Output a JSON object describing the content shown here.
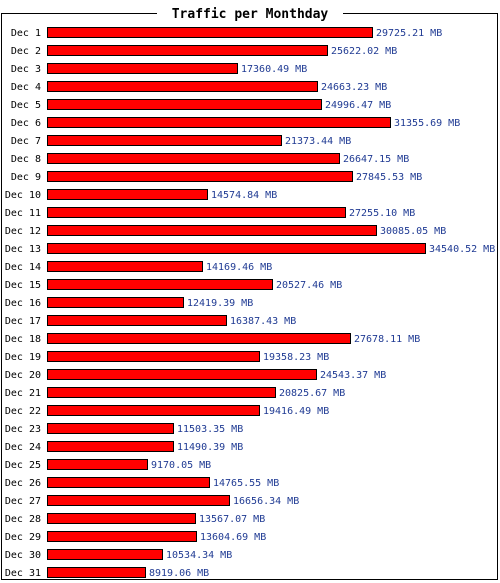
{
  "chart_data": {
    "type": "bar",
    "orientation": "horizontal",
    "title": "Traffic per Monthday",
    "unit": "MB",
    "bar_color": "#ff0000",
    "value_label_color": "#1f3a93",
    "categories": [
      "Dec 1",
      "Dec 2",
      "Dec 3",
      "Dec 4",
      "Dec 5",
      "Dec 6",
      "Dec 7",
      "Dec 8",
      "Dec 9",
      "Dec 10",
      "Dec 11",
      "Dec 12",
      "Dec 13",
      "Dec 14",
      "Dec 15",
      "Dec 16",
      "Dec 17",
      "Dec 18",
      "Dec 19",
      "Dec 20",
      "Dec 21",
      "Dec 22",
      "Dec 23",
      "Dec 24",
      "Dec 25",
      "Dec 26",
      "Dec 27",
      "Dec 28",
      "Dec 29",
      "Dec 30",
      "Dec 31"
    ],
    "values": [
      29725.21,
      25622.02,
      17360.49,
      24663.23,
      24996.47,
      31355.69,
      21373.44,
      26647.15,
      27845.53,
      14574.84,
      27255.1,
      30085.05,
      34540.52,
      14169.46,
      20527.46,
      12419.39,
      16387.43,
      27678.11,
      19358.23,
      24543.37,
      20825.67,
      19416.49,
      11503.35,
      11490.39,
      9170.05,
      14765.55,
      16656.34,
      13567.07,
      13604.69,
      10534.34,
      8919.06
    ],
    "value_labels": [
      "29725.21 MB",
      "25622.02 MB",
      "17360.49 MB",
      "24663.23 MB",
      "24996.47 MB",
      "31355.69 MB",
      "21373.44 MB",
      "26647.15 MB",
      "27845.53 MB",
      "14574.84 MB",
      "27255.10 MB",
      "30085.05 MB",
      "34540.52 MB",
      "14169.46 MB",
      "20527.46 MB",
      "12419.39 MB",
      "16387.43 MB",
      "27678.11 MB",
      "19358.23 MB",
      "24543.37 MB",
      "20825.67 MB",
      "19416.49 MB",
      "11503.35 MB",
      "11490.39 MB",
      "9170.05 MB",
      "14765.55 MB",
      "16656.34 MB",
      "13567.07 MB",
      "13604.69 MB",
      "10534.34 MB",
      "8919.06 MB"
    ]
  }
}
